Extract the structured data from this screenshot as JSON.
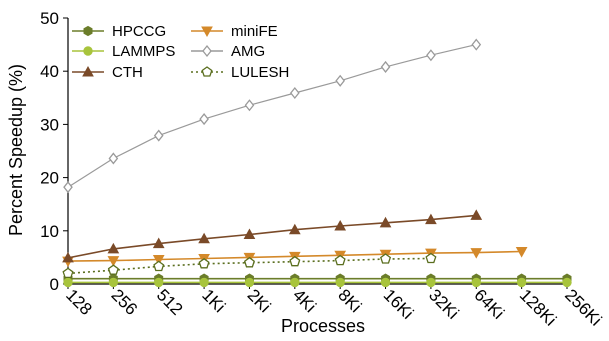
{
  "chart_data": {
    "type": "line",
    "xlabel": "Processes",
    "ylabel": "Percent Speedup (%)",
    "ylim": [
      0,
      50
    ],
    "yticks": [
      0,
      10,
      20,
      30,
      40,
      50
    ],
    "categories": [
      "128",
      "256",
      "512",
      "1Ki",
      "2Ki",
      "4Ki",
      "8Ki",
      "16Ki",
      "32Ki",
      "64Ki",
      "128Ki",
      "256Ki"
    ],
    "grid": false,
    "legend_position": "top-left",
    "series": [
      {
        "name": "HPCCG",
        "color": "#6b7d2a",
        "marker": "hexagon",
        "dash": "solid",
        "values": [
          1.0,
          1.0,
          1.0,
          1.0,
          1.0,
          1.0,
          1.0,
          1.0,
          1.0,
          1.0,
          1.0,
          1.0
        ]
      },
      {
        "name": "miniFE",
        "color": "#d4892a",
        "marker": "triangle-down",
        "dash": "solid",
        "values": [
          4.3,
          4.4,
          4.6,
          4.8,
          5.0,
          5.2,
          5.4,
          5.6,
          5.8,
          5.9,
          6.1,
          null
        ]
      },
      {
        "name": "LAMMPS",
        "color": "#a8c43c",
        "marker": "circle",
        "dash": "solid",
        "values": [
          0.3,
          0.3,
          0.3,
          0.3,
          0.3,
          0.3,
          0.3,
          0.3,
          0.3,
          0.3,
          0.3,
          0.3
        ]
      },
      {
        "name": "AMG",
        "color": "#9a9a9a",
        "marker": "diamond",
        "dash": "solid",
        "values": [
          18.2,
          23.6,
          27.9,
          31.0,
          33.6,
          35.9,
          38.2,
          40.8,
          43.0,
          45.0,
          null,
          null
        ]
      },
      {
        "name": "CTH",
        "color": "#7a4a28",
        "marker": "triangle-up",
        "dash": "solid",
        "values": [
          4.9,
          6.6,
          7.6,
          8.5,
          9.3,
          10.2,
          10.9,
          11.5,
          12.1,
          12.9,
          null,
          null
        ]
      },
      {
        "name": "LULESH",
        "color": "#5a6e1e",
        "marker": "pentagon-open",
        "dash": "dotted",
        "values": [
          2.0,
          2.6,
          3.3,
          3.8,
          4.0,
          4.2,
          4.4,
          4.7,
          4.8,
          null,
          null,
          null
        ]
      }
    ]
  }
}
